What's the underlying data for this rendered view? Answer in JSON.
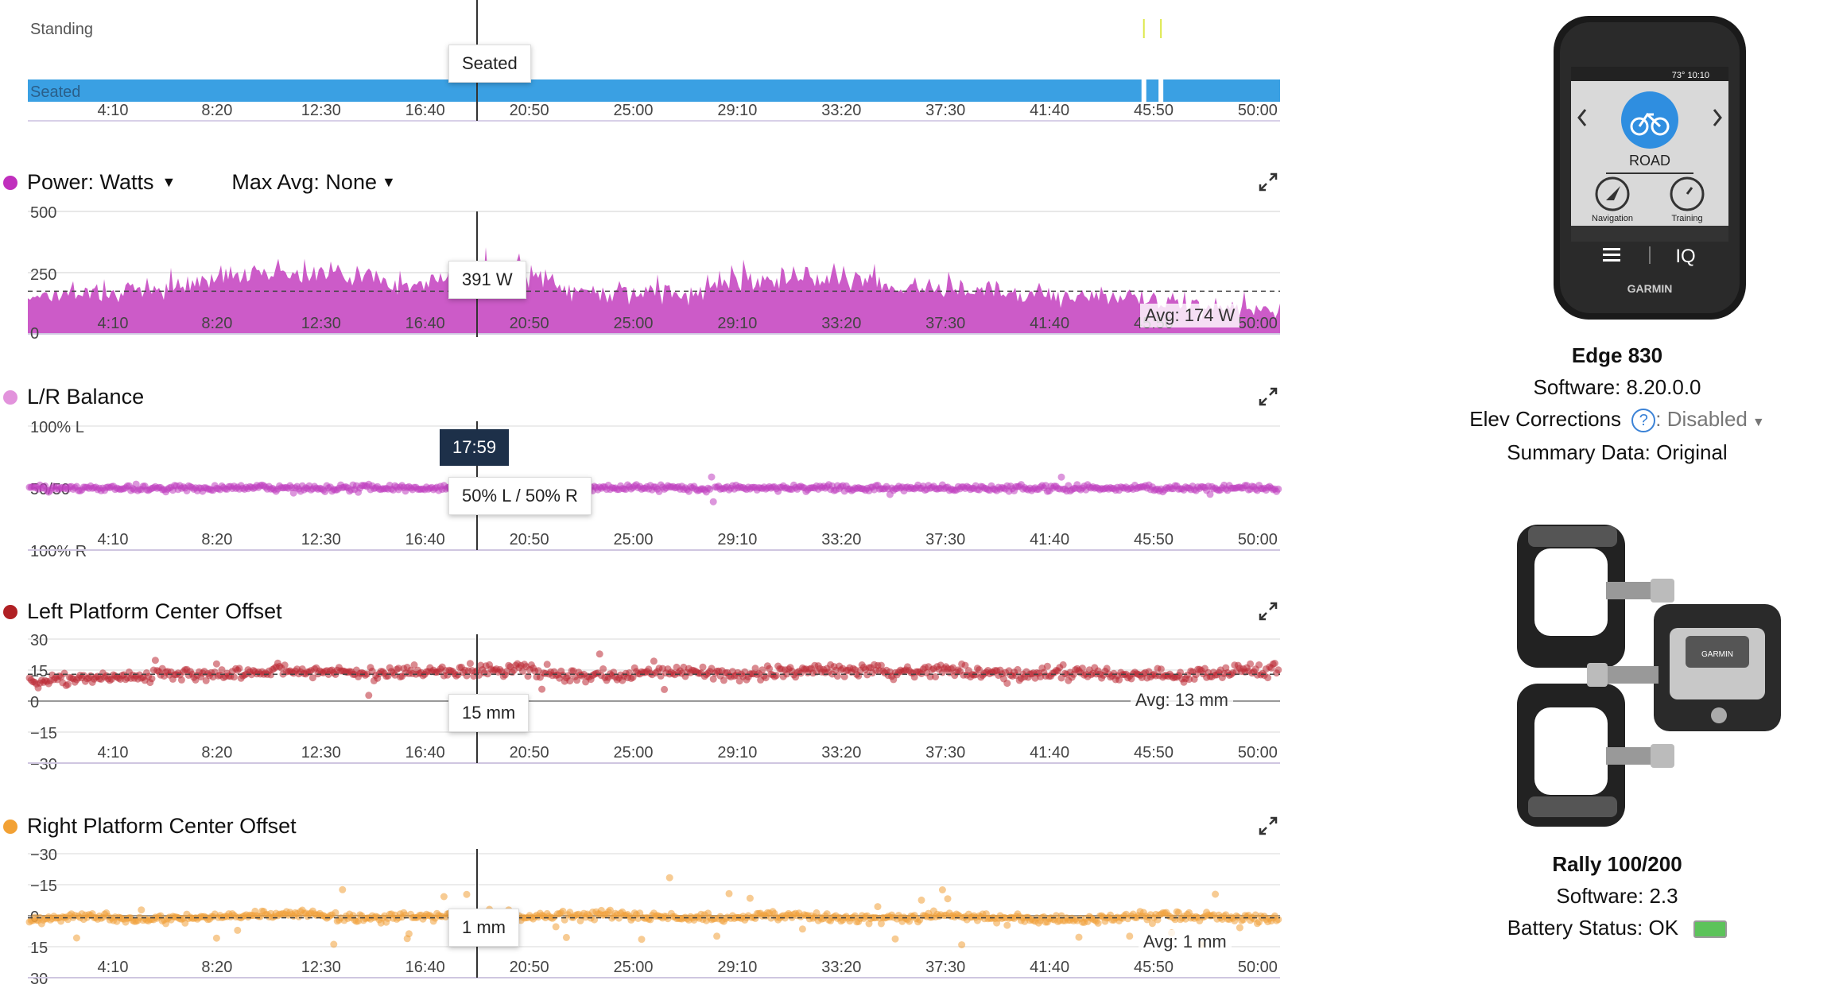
{
  "x_ticks": [
    "4:10",
    "8:20",
    "12:30",
    "16:40",
    "20:50",
    "25:00",
    "29:10",
    "33:20",
    "37:30",
    "41:40",
    "45:50",
    "50:00"
  ],
  "colors": {
    "power": "#cc5bc8",
    "power_dot": "#c02fbd",
    "lr": "#c040c0",
    "lr_dot": "#e293dc",
    "left": "#bb2a35",
    "left_dot": "#b02024",
    "right": "#f0a03a",
    "right_dot": "#f2a134",
    "position_bar": "#3aa0e3",
    "grid": "#e6e6e6",
    "cursor": "#333333",
    "tooltip_dark": "#1d3049"
  },
  "position_chart": {
    "top_label": "Standing",
    "bar_label": "Seated",
    "tooltip": "Seated",
    "standing_marks_at": [
      45.9,
      46.6
    ]
  },
  "power_chart": {
    "title": "Power: Watts",
    "max_avg": "Max Avg: None",
    "y_labels": [
      "500",
      "250",
      "0"
    ],
    "tooltip": "391 W",
    "avg_label": "Avg: 174 W"
  },
  "lr_chart": {
    "title": "L/R Balance",
    "y_labels": [
      "100% L",
      "50/50",
      "100% R"
    ],
    "time_tooltip": "17:59",
    "tooltip": "50% L / 50% R"
  },
  "left_chart": {
    "title": "Left Platform Center Offset",
    "y_labels": [
      "30",
      "15",
      "0",
      "−15",
      "−30"
    ],
    "tooltip": "15 mm",
    "avg_label": "Avg: 13 mm"
  },
  "right_chart": {
    "title": "Right Platform Center Offset",
    "y_labels": [
      "−30",
      "−15",
      "0",
      "15",
      "30"
    ],
    "tooltip": "1 mm",
    "avg_label": "Avg: 1 mm"
  },
  "chart_data": [
    {
      "type": "area",
      "series": [
        {
          "values": [
            160,
            170,
            175,
            200,
            265,
            245,
            250,
            190,
            240,
            250,
            175,
            170,
            165,
            220,
            235,
            230,
            185,
            180,
            170,
            165,
            150,
            130,
            100,
            100
          ]
        }
      ],
      "x": [
        0,
        2.2,
        4.4,
        6.6,
        8.8,
        11,
        13.2,
        15.4,
        17.6,
        19.8,
        22,
        24.2,
        26.4,
        28.6,
        30.8,
        33,
        35.2,
        37.4,
        39.6,
        41.8,
        44,
        46.2,
        48.4,
        50.6
      ],
      "ylim": [
        0,
        500
      ],
      "avg": 174
    },
    {
      "type": "scatter",
      "series": [
        {
          "values": [
            50,
            50,
            50,
            50,
            50,
            50,
            50,
            50,
            50,
            50,
            50,
            50,
            50,
            50,
            50,
            50,
            50,
            50,
            50,
            50,
            50,
            50,
            50,
            50
          ]
        }
      ],
      "ylim": [
        0,
        100
      ],
      "y_meaning": "percent left"
    },
    {
      "type": "scatter",
      "series": [
        {
          "values": [
            10,
            11,
            12,
            13,
            14,
            15,
            13,
            14,
            15,
            16,
            12,
            12,
            14,
            13,
            14,
            15,
            14,
            15,
            13,
            14,
            13,
            12,
            14,
            16
          ]
        }
      ],
      "ylim": [
        -30,
        30
      ],
      "avg": 13
    },
    {
      "type": "scatter",
      "series": [
        {
          "values": [
            2,
            0,
            2,
            1,
            0,
            -1,
            2,
            0,
            1,
            1,
            0,
            0,
            1,
            1,
            0,
            1,
            1,
            0,
            1,
            2,
            1,
            0,
            1,
            2
          ]
        }
      ],
      "ylim": [
        -30,
        30
      ],
      "avg": 1
    }
  ],
  "device": {
    "name": "Edge 830",
    "software": "Software: 8.20.0.0",
    "elev_label": "Elev Corrections",
    "elev_value": ": Disabled",
    "summary": "Summary Data: Original",
    "screen_status": "73°  10:10",
    "screen_mode": "ROAD",
    "screen_nav": "Navigation",
    "screen_training": "Training",
    "screen_iq": "IQ",
    "brand": "GARMIN"
  },
  "pedals": {
    "name": "Rally 100/200",
    "software": "Software: 2.3",
    "battery": "Battery Status: OK",
    "battery_color": "#5cc35a",
    "brand": "GARMIN"
  }
}
